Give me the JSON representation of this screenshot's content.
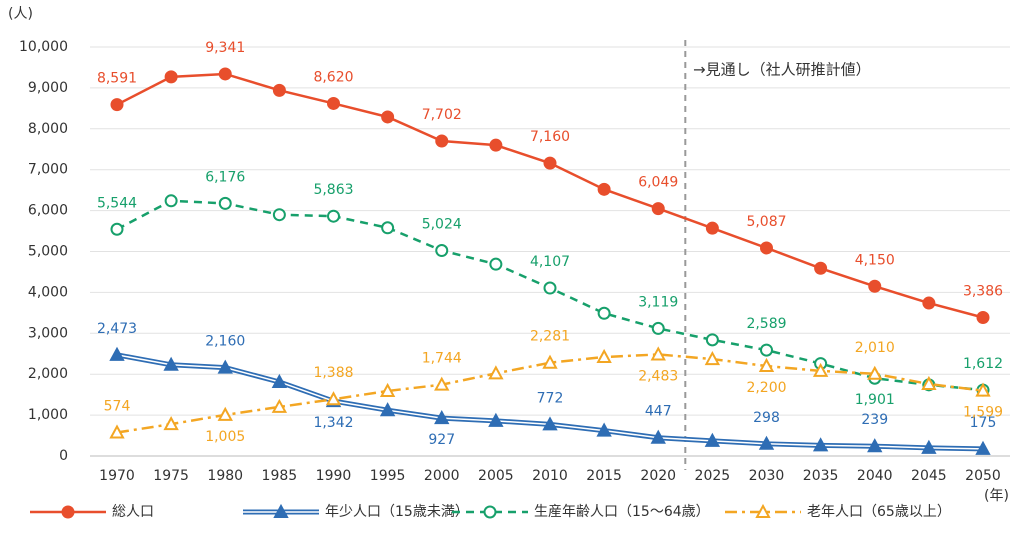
{
  "chart_data": {
    "type": "line",
    "y_label": "(人)",
    "x_label": "(年)",
    "annotation": "→見通し（社人研推計値）",
    "categories": [
      "1970",
      "1975",
      "1980",
      "1985",
      "1990",
      "1995",
      "2000",
      "2005",
      "2010",
      "2015",
      "2020",
      "2025",
      "2030",
      "2035",
      "2040",
      "2045",
      "2050"
    ],
    "ylim": [
      0,
      10000
    ],
    "yticks": [
      0,
      {
        "value": 1000,
        "label": "1,000"
      },
      {
        "value": 2000,
        "label": "2,000"
      },
      {
        "value": 3000,
        "label": "3,000"
      },
      {
        "value": 4000,
        "label": "4,000"
      },
      {
        "value": 5000,
        "label": "5,000"
      },
      {
        "value": 6000,
        "label": "6,000"
      },
      {
        "value": 7000,
        "label": "7,000"
      },
      {
        "value": 8000,
        "label": "8,000"
      },
      {
        "value": 9000,
        "label": "9,000"
      },
      {
        "value": 10000,
        "label": "10,000"
      }
    ],
    "grid": true,
    "series": [
      {
        "name": "総人口",
        "color": "#e84e2c",
        "line_style": "solid",
        "marker": "circle",
        "marker_filled": true,
        "values": [
          8591,
          9270,
          9341,
          8940,
          8620,
          8290,
          7702,
          7600,
          7160,
          6520,
          6049,
          5570,
          5087,
          4590,
          4150,
          3740,
          3386
        ],
        "value_labels": [
          "8,591",
          null,
          "9,341",
          null,
          "8,620",
          null,
          "7,702",
          null,
          "7,160",
          null,
          "6,049",
          null,
          "5,087",
          null,
          "4,150",
          null,
          "3,386"
        ]
      },
      {
        "name": "年少人口（15歳未満）",
        "color": "#2e6db4",
        "line_style": "double",
        "marker": "triangle",
        "marker_filled": true,
        "values": [
          2473,
          2230,
          2160,
          1810,
          1342,
          1120,
          927,
          860,
          772,
          620,
          447,
          370,
          298,
          260,
          239,
          200,
          175
        ],
        "value_labels": [
          "2,473",
          null,
          "2,160",
          null,
          "1,342",
          null,
          "927",
          null,
          "772",
          null,
          "447",
          null,
          "298",
          null,
          "239",
          null,
          "175"
        ]
      },
      {
        "name": "生産年齢人口（15～64歳）",
        "color": "#17a06b",
        "line_style": "dashed",
        "marker": "circle",
        "marker_filled": false,
        "values": [
          5544,
          6240,
          6176,
          5900,
          5863,
          5580,
          5024,
          4690,
          4107,
          3490,
          3119,
          2840,
          2589,
          2260,
          1901,
          1740,
          1612
        ],
        "value_labels": [
          "5,544",
          null,
          "6,176",
          null,
          "5,863",
          null,
          "5,024",
          null,
          "4,107",
          null,
          "3,119",
          null,
          "2,589",
          null,
          "1,901",
          null,
          "1,612"
        ]
      },
      {
        "name": "老年人口（65歳以上）",
        "color": "#f3a623",
        "line_style": "dash-dot",
        "marker": "triangle",
        "marker_filled": false,
        "values": [
          574,
          780,
          1005,
          1200,
          1388,
          1590,
          1744,
          2020,
          2281,
          2420,
          2483,
          2370,
          2200,
          2080,
          2010,
          1760,
          1599
        ],
        "value_labels": [
          "574",
          null,
          "1,005",
          null,
          "1,388",
          null,
          "1,744",
          null,
          "2,281",
          null,
          "2,483",
          null,
          "2,200",
          null,
          "2,010",
          null,
          "1,599"
        ]
      }
    ]
  }
}
